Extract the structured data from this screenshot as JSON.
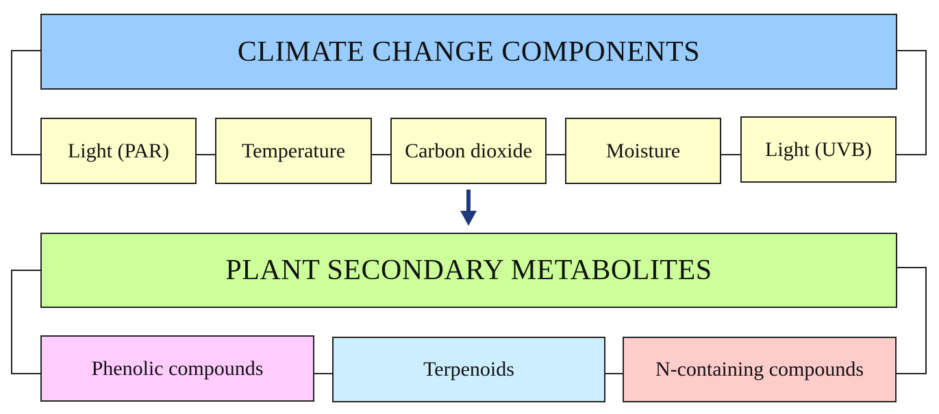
{
  "colors": {
    "climate_header": "#99ccff",
    "climate_item": "#ffffcc",
    "metabolites_header": "#ccff99",
    "phenolic": "#ffccff",
    "terpenoids": "#cceeff",
    "n_containing": "#ffcccc",
    "arrow": "#1f3a7a",
    "line": "#222222"
  },
  "climate": {
    "title": "CLIMATE CHANGE COMPONENTS",
    "items": [
      {
        "label": "Light (PAR)"
      },
      {
        "label": "Temperature"
      },
      {
        "label": "Carbon dioxide"
      },
      {
        "label": "Moisture"
      },
      {
        "label": "Light (UVB)"
      }
    ]
  },
  "metabolites": {
    "title": "PLANT SECONDARY METABOLITES",
    "items": [
      {
        "label": "Phenolic compounds"
      },
      {
        "label": "Terpenoids"
      },
      {
        "label": "N-containing compounds"
      }
    ]
  }
}
